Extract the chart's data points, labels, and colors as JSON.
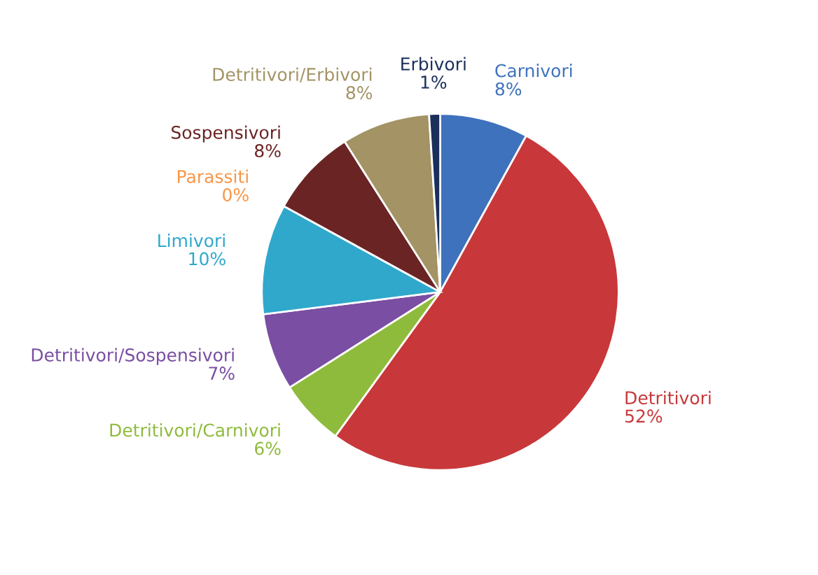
{
  "chart_data": {
    "type": "pie",
    "categories": [
      "Carnivori",
      "Detritivori",
      "Detritivori/Carnivori",
      "Detritivori/Sospensivori",
      "Limivori",
      "Parassiti",
      "Sospensivori",
      "Detritivori/Erbivori",
      "Erbivori"
    ],
    "values": [
      8,
      52,
      6,
      7,
      10,
      0,
      8,
      8,
      1
    ],
    "colors": [
      "#3f72bd",
      "#c8383a",
      "#8fbb3c",
      "#7a4ea2",
      "#2fa8cc",
      "#f79646",
      "#6b2424",
      "#a39365",
      "#1b2f5c"
    ],
    "value_labels": [
      "8%",
      "52%",
      "6%",
      "7%",
      "10%",
      "0%",
      "8%",
      "8%",
      "1%"
    ],
    "legend": false
  }
}
